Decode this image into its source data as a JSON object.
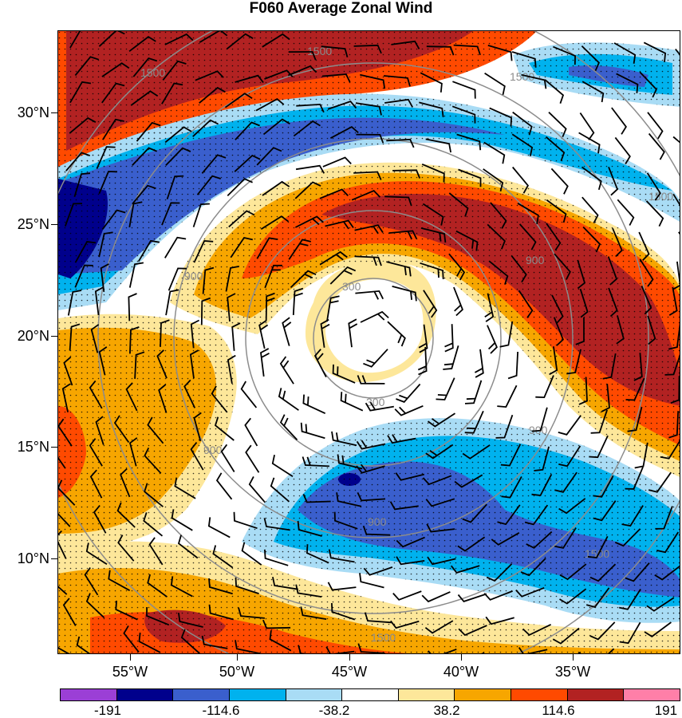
{
  "title": "F060 Average Zonal Wind",
  "axes": {
    "lat_labels": [
      "30°N",
      "25°N",
      "20°N",
      "15°N",
      "10°N"
    ],
    "lon_labels": [
      "55°W",
      "50°W",
      "45°W",
      "40°W",
      "35°W"
    ]
  },
  "colorbar": {
    "colors": [
      "#9b3fd6",
      "#00008c",
      "#3a5fcd",
      "#00b2ee",
      "#a9dcf5",
      "#ffffff",
      "#fde79a",
      "#f7a600",
      "#ff4a00",
      "#b22222",
      "#ff7fa8"
    ],
    "labels": [
      "-191",
      "-114.6",
      "-38.2",
      "38.2",
      "114.6",
      "191"
    ]
  },
  "contour_labels": [
    "1500",
    "1500",
    "1500",
    "900",
    "900",
    "900",
    "300",
    "300",
    "900",
    "900",
    "1500",
    "1500",
    "1500"
  ],
  "chart_data": {
    "type": "heatmap",
    "title": "F060 Average Zonal Wind",
    "x_ticks": [
      "55°W",
      "50°W",
      "45°W",
      "40°W",
      "35°W"
    ],
    "y_ticks": [
      "30°N",
      "25°N",
      "20°N",
      "15°N",
      "10°N"
    ],
    "colorbar_levels": [
      -191,
      -114.6,
      -38.2,
      38.2,
      114.6,
      191
    ],
    "overlays": [
      "range rings labeled 300, 900, 1500",
      "wind barbs",
      "stippling"
    ]
  }
}
